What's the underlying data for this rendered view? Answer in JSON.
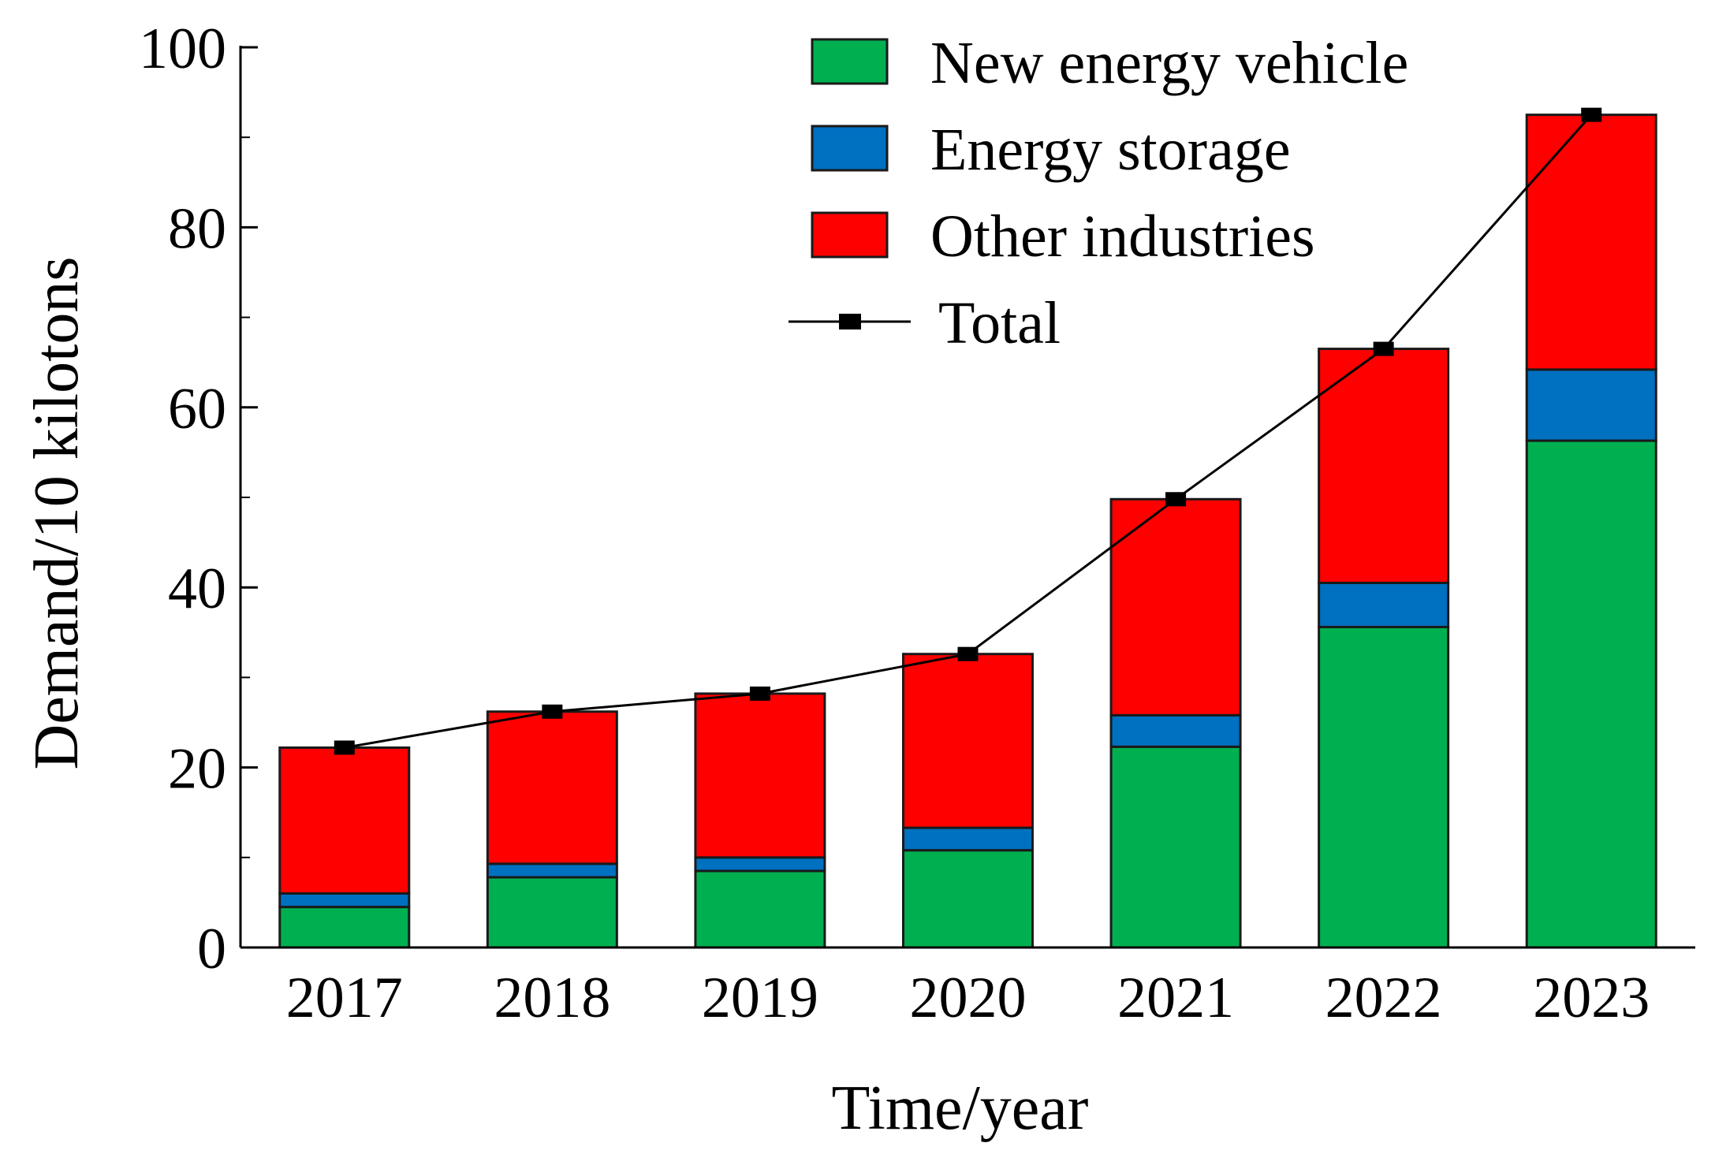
{
  "chart_data": {
    "type": "bar",
    "stacked": true,
    "title": "",
    "xlabel": "Time/year",
    "ylabel": "Demand/10 kilotons",
    "categories": [
      "2017",
      "2018",
      "2019",
      "2020",
      "2021",
      "2022",
      "2023"
    ],
    "series": [
      {
        "name": "New energy vehicle",
        "color": "#00b050",
        "values": [
          4.5,
          7.8,
          8.5,
          10.8,
          22.3,
          35.6,
          56.3
        ]
      },
      {
        "name": "Energy storage",
        "color": "#0070c0",
        "values": [
          1.5,
          1.5,
          1.5,
          2.5,
          3.5,
          4.9,
          7.9
        ]
      },
      {
        "name": "Other industries",
        "color": "#ff0000",
        "values": [
          16.2,
          16.9,
          18.2,
          19.3,
          24.0,
          26.0,
          28.3
        ]
      }
    ],
    "total": {
      "name": "Total",
      "color": "#000000",
      "values": [
        22.2,
        26.2,
        28.2,
        32.6,
        49.8,
        66.5,
        92.5
      ]
    },
    "ylim": [
      0,
      100
    ],
    "yticks": [
      "0",
      "20",
      "40",
      "60",
      "80",
      "100"
    ],
    "grid": false,
    "legend_position": "top-right"
  }
}
